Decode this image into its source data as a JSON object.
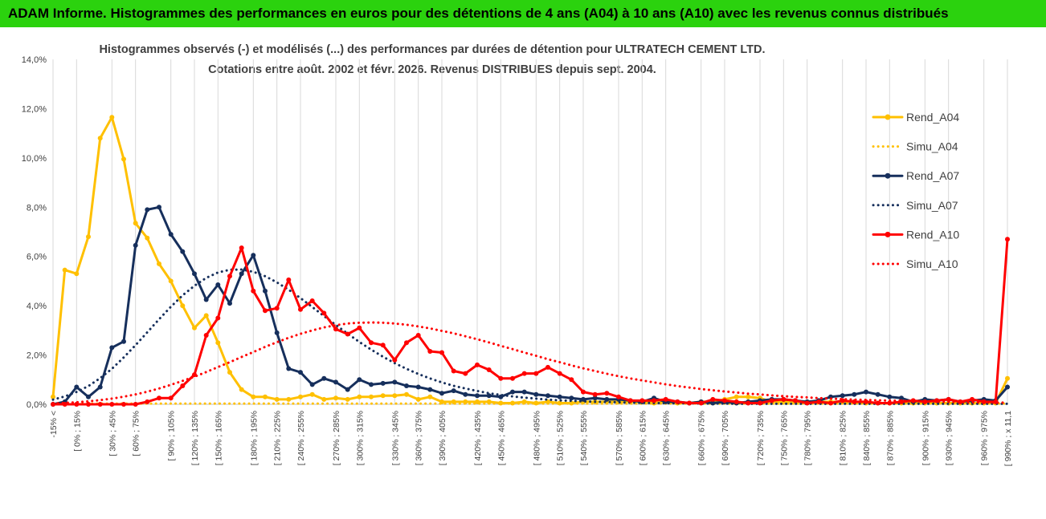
{
  "header": {
    "title": "ADAM Informe. Histogrammes des performances en euros pour des détentions de 4 ans (A04) à 10 ans (A10) avec les revenus connus distribués"
  },
  "chart_data": {
    "type": "line",
    "title_lines": [
      "Histogrammes observés (-) et modélisés (...) des performances par durées de détention pour ULTRATECH CEMENT LTD.",
      "Cotations entre août. 2002 et févr. 2026. Revenus DISTRIBUES depuis sept. 2004."
    ],
    "xlabel": "",
    "ylabel": "",
    "ylim": [
      0,
      14
    ],
    "yticks": [
      "0,0%",
      "2,0%",
      "4,0%",
      "6,0%",
      "8,0%",
      "10,0%",
      "12,0%",
      "14,0%"
    ],
    "grid": "vertical",
    "legend_position": "right",
    "x_labels": [
      "-15% <",
      "[ 0% ; 15%",
      "[ 30% ; 45%",
      "[ 60% ; 75%",
      "[ 90% ; 105%",
      "[ 120% ; 135%",
      "[ 150% ; 165%",
      "[ 180% ; 195%",
      "[ 210% ; 225%",
      "[ 240% ; 255%",
      "[ 270% ; 285%",
      "[ 300% ; 315%",
      "[ 330% ; 345%",
      "[ 360% ; 375%",
      "[ 390% ; 405%",
      "[ 420% ; 435%",
      "[ 450% ; 465%",
      "[ 480% ; 495%",
      "[ 510% ; 525%",
      "[ 540% ; 555%",
      "[ 570% ; 585%",
      "[ 600% ; 615%",
      "[ 630% ; 645%",
      "[ 660% ; 675%",
      "[ 690% ; 705%",
      "[ 720% ; 735%",
      "[ 750% ; 765%",
      "[ 780% ; 795%",
      "[ 810% ; 825%",
      "[ 840% ; 855%",
      "[ 870% ; 885%",
      "[ 900% ; 915%",
      "[ 930% ; 945%",
      "[ 960% ; 975%",
      "[ 990% ; x 11,1"
    ],
    "series": [
      {
        "name": "Rend_A04",
        "style": "solid",
        "color": "#ffc000",
        "values": [
          0.3,
          5.45,
          5.3,
          6.8,
          10.8,
          11.65,
          9.95,
          7.35,
          6.75,
          5.7,
          5.0,
          4.0,
          3.1,
          3.6,
          2.5,
          1.3,
          0.6,
          0.3,
          0.3,
          0.2,
          0.2,
          0.3,
          0.4,
          0.2,
          0.25,
          0.2,
          0.3,
          0.3,
          0.35,
          0.35,
          0.4,
          0.2,
          0.3,
          0.1,
          0.1,
          0.1,
          0.1,
          0.1,
          0.05,
          0.05,
          0.1,
          0.05,
          0.1,
          0.05,
          0.05,
          0.1,
          0.1,
          0.1,
          0.1,
          0.1,
          0.1,
          0.05,
          0.1,
          0.05,
          0.05,
          0.1,
          0.1,
          0.2,
          0.3,
          0.3,
          0.25,
          0.1,
          0.1,
          0.1,
          0.1,
          0.1,
          0.1,
          0.1,
          0.1,
          0.05,
          0.05,
          0.05,
          0.05,
          0.05,
          0.05,
          0.05,
          0.05,
          0.05,
          0.05,
          0.05,
          0.05,
          1.05
        ]
      },
      {
        "name": "Simu_A04",
        "style": "dotted",
        "color": "#ffc000",
        "values": [
          0.03,
          0.03,
          0.03,
          0.03,
          0.03,
          0.03,
          0.03,
          0.03,
          0.03,
          0.03,
          0.03,
          0.03,
          0.03,
          0.03,
          0.03,
          0.03,
          0.03,
          0.03,
          0.03,
          0.03,
          0.03,
          0.03,
          0.03,
          0.03,
          0.03,
          0.03,
          0.03,
          0.03,
          0.03,
          0.03,
          0.03,
          0.03,
          0.03,
          0.03,
          0.03,
          0.03,
          0.03,
          0.03,
          0.03,
          0.03,
          0.03,
          0.03,
          0.03,
          0.03,
          0.03,
          0.03,
          0.03,
          0.03,
          0.03,
          0.03,
          0.03,
          0.03,
          0.03,
          0.03,
          0.03,
          0.03,
          0.03,
          0.03,
          0.03,
          0.03,
          0.03,
          0.03,
          0.03,
          0.03,
          0.03,
          0.03,
          0.03,
          0.03,
          0.03,
          0.03,
          0.03,
          0.03,
          0.03,
          0.03,
          0.03,
          0.03,
          0.03,
          0.03,
          0.03,
          0.03,
          0.03,
          0.03
        ]
      },
      {
        "name": "Rend_A07",
        "style": "solid",
        "color": "#162f5c",
        "values": [
          0.0,
          0.1,
          0.7,
          0.3,
          0.7,
          2.3,
          2.55,
          6.45,
          7.9,
          8.0,
          6.9,
          6.2,
          5.3,
          4.25,
          4.85,
          4.1,
          5.3,
          6.05,
          4.6,
          2.9,
          1.45,
          1.3,
          0.8,
          1.05,
          0.9,
          0.6,
          1.0,
          0.8,
          0.85,
          0.9,
          0.75,
          0.7,
          0.6,
          0.45,
          0.55,
          0.4,
          0.35,
          0.35,
          0.3,
          0.5,
          0.5,
          0.4,
          0.35,
          0.3,
          0.25,
          0.2,
          0.25,
          0.2,
          0.2,
          0.15,
          0.1,
          0.25,
          0.1,
          0.1,
          0.05,
          0.1,
          0.05,
          0.1,
          0.05,
          0.1,
          0.15,
          0.2,
          0.2,
          0.15,
          0.1,
          0.15,
          0.3,
          0.35,
          0.4,
          0.5,
          0.4,
          0.3,
          0.25,
          0.1,
          0.2,
          0.15,
          0.2,
          0.1,
          0.15,
          0.2,
          0.15,
          0.7
        ]
      },
      {
        "name": "Simu_A07",
        "style": "dotted",
        "color": "#162f5c",
        "values": [
          0.19,
          0.32,
          0.5,
          0.74,
          1.06,
          1.44,
          1.9,
          2.4,
          2.92,
          3.45,
          3.96,
          4.42,
          4.81,
          5.13,
          5.35,
          5.46,
          5.47,
          5.38,
          5.2,
          4.95,
          4.65,
          4.31,
          3.95,
          3.58,
          3.22,
          2.87,
          2.53,
          2.22,
          1.93,
          1.67,
          1.44,
          1.23,
          1.05,
          0.89,
          0.75,
          0.64,
          0.54,
          0.45,
          0.38,
          0.32,
          0.27,
          0.23,
          0.19,
          0.16,
          0.14,
          0.12,
          0.1,
          0.09,
          0.08,
          0.07,
          0.06,
          0.05,
          0.05,
          0.04,
          0.04,
          0.03,
          0.03,
          0.03,
          0.02,
          0.02,
          0.02,
          0.02,
          0.02,
          0.02,
          0.02,
          0.02,
          0.02,
          0.02,
          0.02,
          0.02,
          0.02,
          0.02,
          0.02,
          0.02,
          0.02,
          0.02,
          0.02,
          0.02,
          0.02,
          0.02,
          0.02,
          0.02
        ]
      },
      {
        "name": "Rend_A10",
        "style": "solid",
        "color": "#ff0000",
        "values": [
          0.0,
          0.0,
          0.0,
          0.0,
          0.0,
          0.0,
          0.0,
          0.0,
          0.1,
          0.25,
          0.25,
          0.75,
          1.2,
          2.8,
          3.5,
          5.2,
          6.35,
          4.6,
          3.8,
          3.9,
          5.05,
          3.85,
          4.2,
          3.7,
          3.05,
          2.85,
          3.1,
          2.5,
          2.4,
          1.8,
          2.5,
          2.8,
          2.15,
          2.1,
          1.35,
          1.25,
          1.6,
          1.4,
          1.05,
          1.05,
          1.25,
          1.25,
          1.5,
          1.25,
          1.0,
          0.5,
          0.4,
          0.45,
          0.3,
          0.15,
          0.15,
          0.15,
          0.2,
          0.1,
          0.05,
          0.05,
          0.2,
          0.15,
          0.1,
          0.05,
          0.05,
          0.15,
          0.2,
          0.15,
          0.05,
          0.1,
          0.05,
          0.15,
          0.1,
          0.1,
          0.05,
          0.05,
          0.1,
          0.15,
          0.1,
          0.15,
          0.2,
          0.1,
          0.2,
          0.1,
          0.1,
          6.7
        ]
      },
      {
        "name": "Simu_A10",
        "style": "dotted",
        "color": "#ff0000",
        "values": [
          0.03,
          0.06,
          0.08,
          0.12,
          0.17,
          0.23,
          0.31,
          0.4,
          0.51,
          0.64,
          0.79,
          0.95,
          1.12,
          1.31,
          1.51,
          1.71,
          1.92,
          2.12,
          2.33,
          2.52,
          2.7,
          2.86,
          3.0,
          3.12,
          3.21,
          3.28,
          3.31,
          3.32,
          3.31,
          3.28,
          3.23,
          3.16,
          3.08,
          2.98,
          2.88,
          2.76,
          2.64,
          2.51,
          2.37,
          2.24,
          2.1,
          1.97,
          1.83,
          1.71,
          1.58,
          1.46,
          1.35,
          1.24,
          1.14,
          1.05,
          0.97,
          0.89,
          0.81,
          0.74,
          0.68,
          0.62,
          0.57,
          0.52,
          0.48,
          0.43,
          0.4,
          0.36,
          0.33,
          0.3,
          0.28,
          0.25,
          0.23,
          0.21,
          0.19,
          0.18,
          0.16,
          0.15,
          0.14,
          0.13,
          0.12,
          0.11,
          0.1,
          0.09,
          0.08,
          0.08,
          0.07,
          0.07
        ]
      }
    ]
  }
}
